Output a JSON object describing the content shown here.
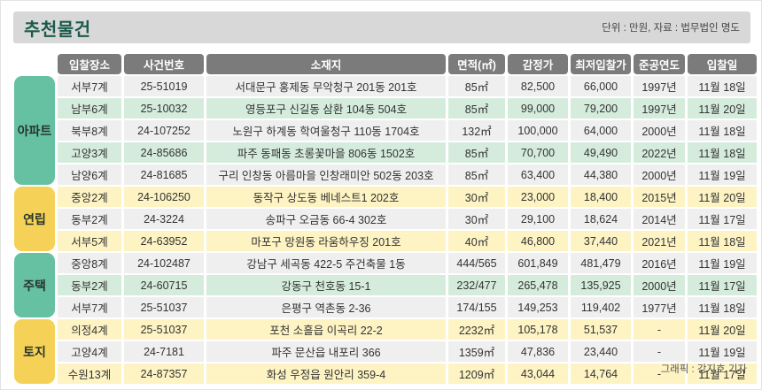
{
  "header": {
    "title": "추천물건",
    "unit_source_note": "단위 : 만원, 자료 : 법무법인 명도"
  },
  "footer": {
    "credit": "그래픽 : 강지호 기자"
  },
  "colors": {
    "title_green": "#1b5b4b",
    "column_header_gray": "#7b7b7b",
    "category_green": "#65c1a2",
    "category_yellow": "#f5d257",
    "row_green": "#d5ecdd",
    "row_yellow": "#fdf3c3",
    "row_plain": "#efefef",
    "title_bar_bg": "#d8d8d8"
  },
  "chart_data": {
    "type": "table",
    "title": "추천물건",
    "columns": [
      "입찰장소",
      "사건번호",
      "소재지",
      "면적(㎡)",
      "감정가",
      "최저입찰가",
      "준공연도",
      "입찰일"
    ],
    "groups": [
      {
        "category": "아파트",
        "theme": "green",
        "rows": [
          [
            "서부7계",
            "25-51019",
            "서대문구 홍제동 무악청구 201동 201호",
            "85㎡",
            "82,500",
            "66,000",
            "1997년",
            "11월 18일"
          ],
          [
            "남부6계",
            "25-10032",
            "영등포구 신길동 삼환 104동 504호",
            "85㎡",
            "99,000",
            "79,200",
            "1997년",
            "11월 20일"
          ],
          [
            "북부8계",
            "24-107252",
            "노원구 하계동 학여울청구 110동 1704호",
            "132㎡",
            "100,000",
            "64,000",
            "2000년",
            "11월 18일"
          ],
          [
            "고양3계",
            "24-85686",
            "파주 동패동 초롱꽃마을 806동 1502호",
            "85㎡",
            "70,700",
            "49,490",
            "2022년",
            "11월 18일"
          ],
          [
            "남양6계",
            "24-81685",
            "구리 인창동 아름마을 인창래미안 502동 203호",
            "85㎡",
            "63,400",
            "44,380",
            "2000년",
            "11월 19일"
          ]
        ]
      },
      {
        "category": "연립",
        "theme": "yellow",
        "rows": [
          [
            "중앙2계",
            "24-106250",
            "동작구 상도동 베네스트1 202호",
            "30㎡",
            "23,000",
            "18,400",
            "2015년",
            "11월 20일"
          ],
          [
            "동부2계",
            "24-3224",
            "송파구 오금동 66-4 302호",
            "30㎡",
            "29,100",
            "18,624",
            "2014년",
            "11월 17일"
          ],
          [
            "서부5계",
            "24-63952",
            "마포구 망원동 라움하우징 201호",
            "40㎡",
            "46,800",
            "37,440",
            "2021년",
            "11월 18일"
          ]
        ]
      },
      {
        "category": "주택",
        "theme": "green",
        "rows": [
          [
            "중앙8계",
            "24-102487",
            "강남구 세곡동 422-5 주건축물 1동",
            "444/565",
            "601,849",
            "481,479",
            "2016년",
            "11월 19일"
          ],
          [
            "동부2계",
            "24-60715",
            "강동구 천호동 15-1",
            "232/477",
            "265,478",
            "135,925",
            "2000년",
            "11월 17일"
          ],
          [
            "서부7계",
            "25-51037",
            "은평구 역촌동 2-36",
            "174/155",
            "149,253",
            "119,402",
            "1977년",
            "11월 18일"
          ]
        ]
      },
      {
        "category": "토지",
        "theme": "yellow",
        "rows": [
          [
            "의정4계",
            "25-51037",
            "포천 소흘읍 이곡리 22-2",
            "2232㎡",
            "105,178",
            "51,537",
            "-",
            "11월 20일"
          ],
          [
            "고양4계",
            "24-7181",
            "파주 문산읍 내포리 366",
            "1359㎡",
            "47,836",
            "23,440",
            "-",
            "11월 19일"
          ],
          [
            "수원13계",
            "24-87357",
            "화성 우정읍 원안리 359-4",
            "1209㎡",
            "43,044",
            "14,764",
            "-",
            "11월 17일"
          ]
        ]
      }
    ]
  }
}
